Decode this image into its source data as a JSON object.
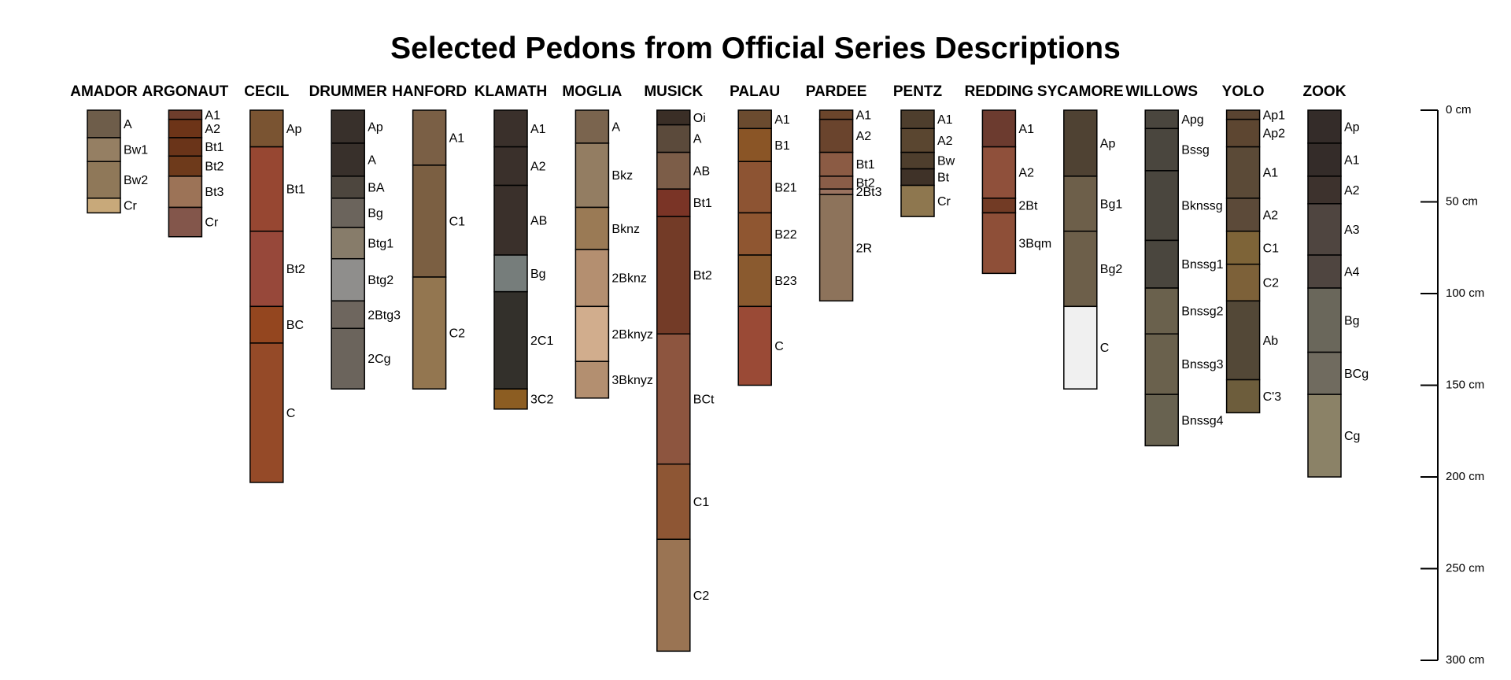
{
  "title": "Selected Pedons from Official Series Descriptions",
  "chart_data": {
    "type": "soil-profile-sketch",
    "depth_unit": "cm",
    "depth_range": [
      0,
      300
    ],
    "depth_ticks": [
      {
        "value": 0,
        "label": "0 cm"
      },
      {
        "value": 50,
        "label": "50 cm"
      },
      {
        "value": 100,
        "label": "100 cm"
      },
      {
        "value": 150,
        "label": "150 cm"
      },
      {
        "value": 200,
        "label": "200 cm"
      },
      {
        "value": 250,
        "label": "250 cm"
      },
      {
        "value": 300,
        "label": "300 cm"
      }
    ],
    "pedons": [
      {
        "name": "AMADOR",
        "horizons": [
          {
            "name": "A",
            "top": 0,
            "bottom": 15,
            "color": "#6e5d4a"
          },
          {
            "name": "Bw1",
            "top": 15,
            "bottom": 28,
            "color": "#957f63"
          },
          {
            "name": "Bw2",
            "top": 28,
            "bottom": 48,
            "color": "#8f7859"
          },
          {
            "name": "Cr",
            "top": 48,
            "bottom": 56,
            "color": "#c8a97a"
          }
        ]
      },
      {
        "name": "ARGONAUT",
        "horizons": [
          {
            "name": "A1",
            "top": 0,
            "bottom": 5,
            "color": "#6e3d2c"
          },
          {
            "name": "A2",
            "top": 5,
            "bottom": 15,
            "color": "#6d3418"
          },
          {
            "name": "Bt1",
            "top": 15,
            "bottom": 25,
            "color": "#6a3419"
          },
          {
            "name": "Bt2",
            "top": 25,
            "bottom": 36,
            "color": "#6e3a1b"
          },
          {
            "name": "Bt3",
            "top": 36,
            "bottom": 53,
            "color": "#9c7357"
          },
          {
            "name": "Cr",
            "top": 53,
            "bottom": 69,
            "color": "#83564b"
          }
        ]
      },
      {
        "name": "CECIL",
        "horizons": [
          {
            "name": "Ap",
            "top": 0,
            "bottom": 20,
            "color": "#7a5432"
          },
          {
            "name": "Bt1",
            "top": 20,
            "bottom": 66,
            "color": "#974732"
          },
          {
            "name": "Bt2",
            "top": 66,
            "bottom": 107,
            "color": "#97483a"
          },
          {
            "name": "BC",
            "top": 107,
            "bottom": 127,
            "color": "#94461f"
          },
          {
            "name": "C",
            "top": 127,
            "bottom": 203,
            "color": "#954a28"
          }
        ]
      },
      {
        "name": "DRUMMER",
        "horizons": [
          {
            "name": "Ap",
            "top": 0,
            "bottom": 18,
            "color": "#38302b"
          },
          {
            "name": "A",
            "top": 18,
            "bottom": 36,
            "color": "#38302b"
          },
          {
            "name": "BA",
            "top": 36,
            "bottom": 48,
            "color": "#4d463e"
          },
          {
            "name": "Bg",
            "top": 48,
            "bottom": 64,
            "color": "#6b645c"
          },
          {
            "name": "Btg1",
            "top": 64,
            "bottom": 81,
            "color": "#877c6a"
          },
          {
            "name": "Btg2",
            "top": 81,
            "bottom": 104,
            "color": "#8f8e8c"
          },
          {
            "name": "2Btg3",
            "top": 104,
            "bottom": 119,
            "color": "#6e665e"
          },
          {
            "name": "2Cg",
            "top": 119,
            "bottom": 152,
            "color": "#6b645c"
          }
        ]
      },
      {
        "name": "HANFORD",
        "horizons": [
          {
            "name": "A1",
            "top": 0,
            "bottom": 30,
            "color": "#7a5f45"
          },
          {
            "name": "C1",
            "top": 30,
            "bottom": 91,
            "color": "#7b5f42"
          },
          {
            "name": "C2",
            "top": 91,
            "bottom": 152,
            "color": "#937650"
          }
        ]
      },
      {
        "name": "KLAMATH",
        "horizons": [
          {
            "name": "A1",
            "top": 0,
            "bottom": 20,
            "color": "#3a302b"
          },
          {
            "name": "A2",
            "top": 20,
            "bottom": 41,
            "color": "#3a302b"
          },
          {
            "name": "AB",
            "top": 41,
            "bottom": 79,
            "color": "#3a302b"
          },
          {
            "name": "Bg",
            "top": 79,
            "bottom": 99,
            "color": "#767d7b"
          },
          {
            "name": "2C1",
            "top": 99,
            "bottom": 152,
            "color": "#33302b"
          },
          {
            "name": "3C2",
            "top": 152,
            "bottom": 163,
            "color": "#8c5d22"
          }
        ]
      },
      {
        "name": "MOGLIA",
        "horizons": [
          {
            "name": "A",
            "top": 0,
            "bottom": 18,
            "color": "#7a644e"
          },
          {
            "name": "Bkz",
            "top": 18,
            "bottom": 53,
            "color": "#937d62"
          },
          {
            "name": "Bknz",
            "top": 53,
            "bottom": 76,
            "color": "#9a7a55"
          },
          {
            "name": "2Bknz",
            "top": 76,
            "bottom": 107,
            "color": "#b48f70"
          },
          {
            "name": "2Bknyz",
            "top": 107,
            "bottom": 137,
            "color": "#d1ad8d"
          },
          {
            "name": "3Bknyz",
            "top": 137,
            "bottom": 157,
            "color": "#b38f70"
          }
        ]
      },
      {
        "name": "MUSICK",
        "horizons": [
          {
            "name": "Oi",
            "top": 0,
            "bottom": 8,
            "color": "#3a2e26"
          },
          {
            "name": "A",
            "top": 8,
            "bottom": 23,
            "color": "#5b4a3b"
          },
          {
            "name": "AB",
            "top": 23,
            "bottom": 43,
            "color": "#7c5d48"
          },
          {
            "name": "Bt1",
            "top": 43,
            "bottom": 58,
            "color": "#7a3426"
          },
          {
            "name": "Bt2",
            "top": 58,
            "bottom": 122,
            "color": "#733b27"
          },
          {
            "name": "BCt",
            "top": 122,
            "bottom": 193,
            "color": "#8d553f"
          },
          {
            "name": "C1",
            "top": 193,
            "bottom": 234,
            "color": "#8e5634"
          },
          {
            "name": "C2",
            "top": 234,
            "bottom": 295,
            "color": "#9a7453"
          }
        ]
      },
      {
        "name": "PALAU",
        "horizons": [
          {
            "name": "A1",
            "top": 0,
            "bottom": 10,
            "color": "#6b4b2f"
          },
          {
            "name": "B1",
            "top": 10,
            "bottom": 28,
            "color": "#8a5526"
          },
          {
            "name": "B21",
            "top": 28,
            "bottom": 56,
            "color": "#8d5433"
          },
          {
            "name": "B22",
            "top": 56,
            "bottom": 79,
            "color": "#8f5631"
          },
          {
            "name": "B23",
            "top": 79,
            "bottom": 107,
            "color": "#8a5a2f"
          },
          {
            "name": "C",
            "top": 107,
            "bottom": 150,
            "color": "#9a4a36"
          }
        ]
      },
      {
        "name": "PARDEE",
        "horizons": [
          {
            "name": "A1",
            "top": 0,
            "bottom": 5,
            "color": "#6b452b"
          },
          {
            "name": "A2",
            "top": 5,
            "bottom": 23,
            "color": "#6a442d"
          },
          {
            "name": "Bt1",
            "top": 23,
            "bottom": 36,
            "color": "#8b5b44"
          },
          {
            "name": "Bt2",
            "top": 36,
            "bottom": 43,
            "color": "#8a5d48"
          },
          {
            "name": "2Bt3",
            "top": 43,
            "bottom": 46,
            "color": "#9a7360"
          },
          {
            "name": "2R",
            "top": 46,
            "bottom": 104,
            "color": "#8d735b"
          }
        ]
      },
      {
        "name": "PENTZ",
        "horizons": [
          {
            "name": "A1",
            "top": 0,
            "bottom": 10,
            "color": "#4e3e2d"
          },
          {
            "name": "A2",
            "top": 10,
            "bottom": 23,
            "color": "#5a4630"
          },
          {
            "name": "Bw",
            "top": 23,
            "bottom": 32,
            "color": "#4e3e2d"
          },
          {
            "name": "Bt",
            "top": 32,
            "bottom": 41,
            "color": "#3f3228"
          },
          {
            "name": "Cr",
            "top": 41,
            "bottom": 58,
            "color": "#8e774f"
          }
        ]
      },
      {
        "name": "REDDING",
        "horizons": [
          {
            "name": "A1",
            "top": 0,
            "bottom": 20,
            "color": "#6c3b2f"
          },
          {
            "name": "A2",
            "top": 20,
            "bottom": 48,
            "color": "#8f503b"
          },
          {
            "name": "2Bt",
            "top": 48,
            "bottom": 56,
            "color": "#723b25"
          },
          {
            "name": "3Bqm",
            "top": 56,
            "bottom": 89,
            "color": "#8e4f38"
          }
        ]
      },
      {
        "name": "SYCAMORE",
        "horizons": [
          {
            "name": "Ap",
            "top": 0,
            "bottom": 36,
            "color": "#4f4233"
          },
          {
            "name": "Bg1",
            "top": 36,
            "bottom": 66,
            "color": "#6d5f4a"
          },
          {
            "name": "Bg2",
            "top": 66,
            "bottom": 107,
            "color": "#6d5f4a"
          },
          {
            "name": "C",
            "top": 107,
            "bottom": 152,
            "color": "#f0f0f0"
          }
        ]
      },
      {
        "name": "WILLOWS",
        "horizons": [
          {
            "name": "Apg",
            "top": 0,
            "bottom": 10,
            "color": "#4a463e"
          },
          {
            "name": "Bssg",
            "top": 10,
            "bottom": 33,
            "color": "#4a463e"
          },
          {
            "name": "Bknssg",
            "top": 33,
            "bottom": 71,
            "color": "#4a463e"
          },
          {
            "name": "Bnssg1",
            "top": 71,
            "bottom": 97,
            "color": "#4a463e"
          },
          {
            "name": "Bnssg2",
            "top": 97,
            "bottom": 122,
            "color": "#6a614d"
          },
          {
            "name": "Bnssg3",
            "top": 122,
            "bottom": 155,
            "color": "#6a614d"
          },
          {
            "name": "Bnssg4",
            "top": 155,
            "bottom": 183,
            "color": "#686250"
          }
        ]
      },
      {
        "name": "YOLO",
        "horizons": [
          {
            "name": "Ap1",
            "top": 0,
            "bottom": 5,
            "color": "#5a4431"
          },
          {
            "name": "Ap2",
            "top": 5,
            "bottom": 20,
            "color": "#5d4631"
          },
          {
            "name": "A1",
            "top": 20,
            "bottom": 48,
            "color": "#5b4a37"
          },
          {
            "name": "A2",
            "top": 48,
            "bottom": 66,
            "color": "#5c4a39"
          },
          {
            "name": "C1",
            "top": 66,
            "bottom": 84,
            "color": "#7e6438"
          },
          {
            "name": "C2",
            "top": 84,
            "bottom": 104,
            "color": "#7d6139"
          },
          {
            "name": "Ab",
            "top": 104,
            "bottom": 147,
            "color": "#534837"
          },
          {
            "name": "C'3",
            "top": 147,
            "bottom": 165,
            "color": "#6d5d3c"
          }
        ]
      },
      {
        "name": "ZOOK",
        "horizons": [
          {
            "name": "Ap",
            "top": 0,
            "bottom": 18,
            "color": "#342c29"
          },
          {
            "name": "A1",
            "top": 18,
            "bottom": 36,
            "color": "#342c29"
          },
          {
            "name": "A2",
            "top": 36,
            "bottom": 51,
            "color": "#3d322d"
          },
          {
            "name": "A3",
            "top": 51,
            "bottom": 79,
            "color": "#4f4540"
          },
          {
            "name": "A4",
            "top": 79,
            "bottom": 97,
            "color": "#4f4540"
          },
          {
            "name": "Bg",
            "top": 97,
            "bottom": 132,
            "color": "#6a675b"
          },
          {
            "name": "BCg",
            "top": 132,
            "bottom": 155,
            "color": "#706b5f"
          },
          {
            "name": "Cg",
            "top": 155,
            "bottom": 200,
            "color": "#8b8267"
          }
        ]
      }
    ]
  }
}
